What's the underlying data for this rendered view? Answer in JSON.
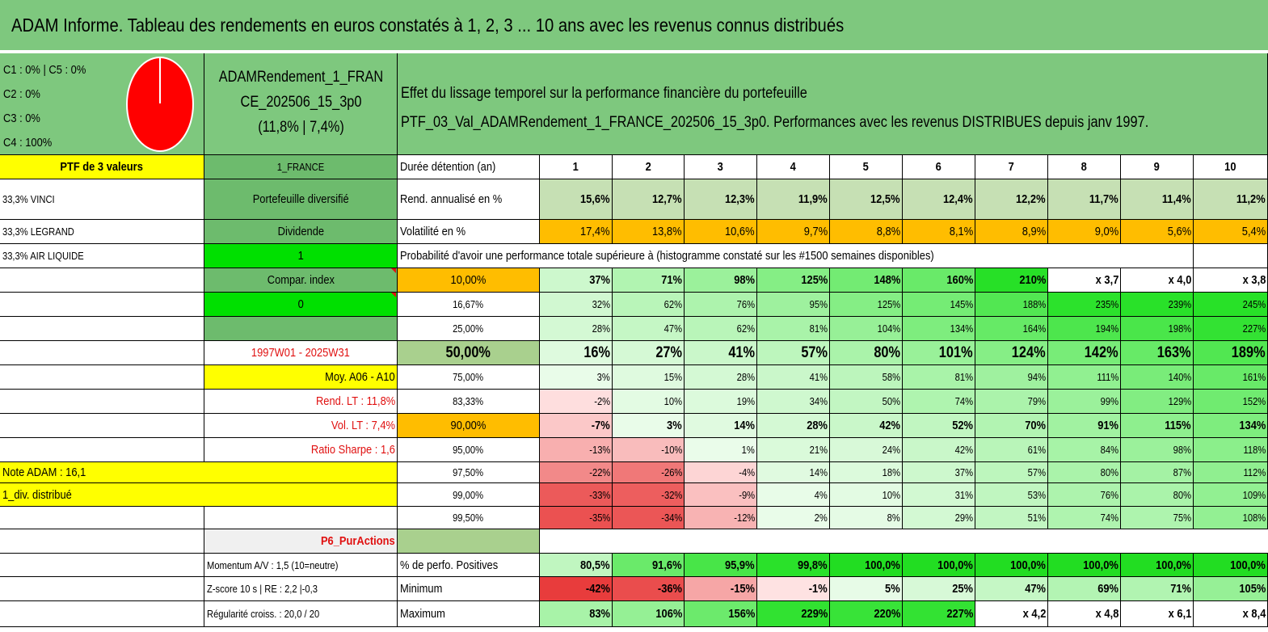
{
  "title": "ADAM Informe. Tableau des rendements en euros constatés à 1, 2, 3 ... 10 ans avec les revenus connus distribués",
  "header": {
    "classes": [
      "C1 : 0% | C5 : 0%",
      "C2 : 0%",
      "C3 : 0%",
      "C4 : 100%"
    ],
    "fund_name_1": "ADAMRendement_1_FRAN",
    "fund_name_2": "CE_202506_15_3p0",
    "fund_stats": "(11,8% | 7,4%)",
    "desc_1": "Effet du lissage temporel sur la performance financière du portefeuille",
    "desc_2": "PTF_03_Val_ADAMRendement_1_FRANCE_202506_15_3p0. Performances avec les revenus DISTRIBUES depuis janv 1997.",
    "pie_colors": [
      "#ff0000"
    ]
  },
  "left": {
    "ptf_label": "PTF de 3 valeurs",
    "holdings": [
      "33,3% VINCI",
      "33,3% LEGRAND",
      "33,3% AIR LIQUIDE"
    ],
    "note": "Note ADAM : 16,1",
    "div": "1_div. distribué"
  },
  "mid": {
    "m1": "1_FRANCE",
    "m2": "Portefeuille diversifié",
    "m3": "Dividende",
    "m4": "1",
    "m5": "Compar. index",
    "m6": "0",
    "m7": "",
    "m8": "1997W01 - 2025W31",
    "m9": "Moy. A06 - A10",
    "m10": "Rend. LT : 11,8%",
    "m11": "Vol. LT : 7,4%",
    "m12": "Ratio Sharpe : 1,6",
    "p6": "P6_PurActions",
    "momentum": "Momentum A/V : 1,5 (10=neutre)",
    "zscore": "Z-score 10 s | RE : 2,2 |-0,3",
    "regularite": "Régularité croiss. : 20,0 / 20"
  },
  "table": {
    "duration_label": "Durée détention (an)",
    "years": [
      "1",
      "2",
      "3",
      "4",
      "5",
      "6",
      "7",
      "8",
      "9",
      "10"
    ],
    "rend_label": "Rend. annualisé en %",
    "rend": [
      "15,6%",
      "12,7%",
      "12,3%",
      "11,9%",
      "12,5%",
      "12,4%",
      "12,2%",
      "11,7%",
      "11,4%",
      "11,2%"
    ],
    "vol_label": "Volatilité en %",
    "vol": [
      "17,4%",
      "13,8%",
      "10,6%",
      "9,7%",
      "8,8%",
      "8,1%",
      "8,9%",
      "9,0%",
      "5,6%",
      "5,4%"
    ],
    "prob_label": "Probabilité d'avoir une performance totale supérieure à (histogramme constaté sur les #1500 semaines disponibles)",
    "prob_rows": [
      {
        "p": "10,00%",
        "v": [
          "37%",
          "71%",
          "98%",
          "125%",
          "148%",
          "160%",
          "210%",
          "x 3,7",
          "x 4,0",
          "x 3,8"
        ]
      },
      {
        "p": "16,67%",
        "v": [
          "32%",
          "62%",
          "76%",
          "95%",
          "125%",
          "145%",
          "188%",
          "235%",
          "239%",
          "245%"
        ]
      },
      {
        "p": "25,00%",
        "v": [
          "28%",
          "47%",
          "62%",
          "81%",
          "104%",
          "134%",
          "164%",
          "194%",
          "198%",
          "227%"
        ]
      },
      {
        "p": "50,00%",
        "v": [
          "16%",
          "27%",
          "41%",
          "57%",
          "80%",
          "101%",
          "124%",
          "142%",
          "163%",
          "189%"
        ]
      },
      {
        "p": "75,00%",
        "v": [
          "3%",
          "15%",
          "28%",
          "41%",
          "58%",
          "81%",
          "94%",
          "111%",
          "140%",
          "161%"
        ]
      },
      {
        "p": "83,33%",
        "v": [
          "-2%",
          "10%",
          "19%",
          "34%",
          "50%",
          "74%",
          "79%",
          "99%",
          "129%",
          "152%"
        ]
      },
      {
        "p": "90,00%",
        "v": [
          "-7%",
          "3%",
          "14%",
          "28%",
          "42%",
          "52%",
          "70%",
          "91%",
          "115%",
          "134%"
        ]
      },
      {
        "p": "95,00%",
        "v": [
          "-13%",
          "-10%",
          "1%",
          "21%",
          "24%",
          "42%",
          "61%",
          "84%",
          "98%",
          "118%"
        ]
      },
      {
        "p": "97,50%",
        "v": [
          "-22%",
          "-26%",
          "-4%",
          "14%",
          "18%",
          "37%",
          "57%",
          "80%",
          "87%",
          "112%"
        ]
      },
      {
        "p": "99,00%",
        "v": [
          "-33%",
          "-32%",
          "-9%",
          "4%",
          "10%",
          "31%",
          "53%",
          "76%",
          "80%",
          "109%"
        ]
      },
      {
        "p": "99,50%",
        "v": [
          "-35%",
          "-34%",
          "-12%",
          "2%",
          "8%",
          "29%",
          "51%",
          "74%",
          "75%",
          "108%"
        ]
      }
    ],
    "pos_label": "% de perfo. Positives",
    "pos": [
      "80,5%",
      "91,6%",
      "95,9%",
      "99,8%",
      "100,0%",
      "100,0%",
      "100,0%",
      "100,0%",
      "100,0%",
      "100,0%"
    ],
    "min_label": "Minimum",
    "min": [
      "-42%",
      "-36%",
      "-15%",
      "-1%",
      "5%",
      "25%",
      "47%",
      "69%",
      "71%",
      "105%"
    ],
    "max_label": "Maximum",
    "max": [
      "83%",
      "106%",
      "156%",
      "229%",
      "220%",
      "227%",
      "x 4,2",
      "x 4,8",
      "x 6,1",
      "x 8,4"
    ]
  }
}
